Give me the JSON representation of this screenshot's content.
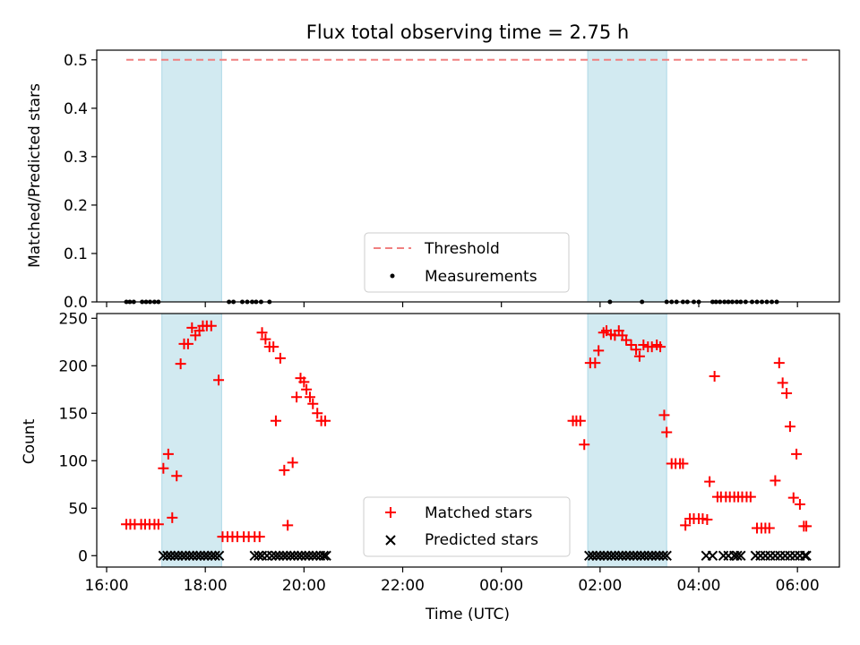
{
  "chart_data": [
    {
      "type": "scatter",
      "title": "Flux total observing time = 2.75 h",
      "ylabel": "Matched/Predicted stars",
      "xlabel": "",
      "x_unit": "hours since 00:00 UTC (values past 24 are next day)",
      "xlim": [
        15.8,
        30.85
      ],
      "ylim": [
        0,
        0.52
      ],
      "yticks": [
        0.0,
        0.1,
        0.2,
        0.3,
        0.4,
        0.5
      ],
      "ytick_labels": [
        "0.0",
        "0.1",
        "0.2",
        "0.3",
        "0.4",
        "0.5"
      ],
      "threshold": {
        "label": "Threshold",
        "y": 0.5,
        "x_start": 16.4,
        "x_end": 30.2,
        "color": "#f08080"
      },
      "shaded_intervals": [
        [
          17.12,
          18.33
        ],
        [
          25.75,
          27.35
        ]
      ],
      "shade_color": "#add8e6",
      "series": [
        {
          "name": "Measurements",
          "marker": "dot",
          "color": "#000000",
          "x": [
            16.4,
            16.47,
            16.55,
            16.72,
            16.8,
            16.88,
            16.97,
            17.05,
            18.48,
            18.57,
            18.75,
            18.85,
            18.95,
            19.03,
            19.13,
            19.3,
            26.2,
            26.85,
            27.35,
            27.45,
            27.55,
            27.68,
            27.77,
            27.9,
            28.0,
            28.28,
            28.35,
            28.43,
            28.52,
            28.6,
            28.68,
            28.77,
            28.85,
            28.95,
            29.08,
            29.18,
            29.28,
            29.38,
            29.48,
            29.58
          ],
          "y": [
            0,
            0,
            0,
            0,
            0,
            0,
            0,
            0,
            0,
            0,
            0,
            0,
            0,
            0,
            0,
            0,
            0,
            0,
            0,
            0,
            0,
            0,
            0,
            0,
            0,
            0,
            0,
            0,
            0,
            0,
            0,
            0,
            0,
            0,
            0,
            0,
            0,
            0,
            0,
            0
          ]
        }
      ],
      "legend": {
        "position": "lower-center",
        "entries": [
          "Threshold",
          "Measurements"
        ]
      }
    },
    {
      "type": "scatter",
      "title": "",
      "xlabel": "Time (UTC)",
      "ylabel": "Count",
      "x_unit": "hours since 00:00 UTC (values past 24 are next day)",
      "xlim": [
        15.8,
        30.85
      ],
      "ylim": [
        -12,
        255
      ],
      "yticks": [
        0,
        50,
        100,
        150,
        200,
        250
      ],
      "ytick_labels": [
        "0",
        "50",
        "100",
        "150",
        "200",
        "250"
      ],
      "xticks": [
        16,
        18,
        20,
        22,
        24,
        26,
        28,
        30
      ],
      "xtick_labels": [
        "16:00",
        "18:00",
        "20:00",
        "22:00",
        "00:00",
        "02:00",
        "04:00",
        "06:00"
      ],
      "shaded_intervals": [
        [
          17.12,
          18.33
        ],
        [
          25.75,
          27.35
        ]
      ],
      "shade_color": "#add8e6",
      "series": [
        {
          "name": "Matched stars",
          "marker": "plus",
          "color": "#ff0000",
          "x": [
            16.4,
            16.48,
            16.57,
            16.7,
            16.78,
            16.87,
            16.97,
            17.05,
            17.15,
            17.25,
            17.33,
            17.42,
            17.5,
            17.57,
            17.65,
            17.73,
            17.8,
            17.88,
            17.95,
            18.03,
            18.12,
            18.27,
            18.35,
            18.45,
            18.55,
            18.65,
            18.78,
            18.88,
            19.0,
            19.1,
            19.15,
            19.22,
            19.3,
            19.38,
            19.43,
            19.52,
            19.6,
            19.67,
            19.77,
            19.85,
            19.93,
            20.0,
            20.05,
            20.12,
            20.18,
            20.27,
            20.35,
            20.43,
            25.45,
            25.52,
            25.6,
            25.68,
            25.8,
            25.9,
            25.97,
            26.07,
            26.13,
            26.22,
            26.3,
            26.38,
            26.45,
            26.53,
            26.63,
            26.73,
            26.8,
            26.88,
            26.97,
            27.05,
            27.15,
            27.22,
            27.3,
            27.35,
            27.45,
            27.53,
            27.62,
            27.68,
            27.73,
            27.82,
            27.9,
            28.0,
            28.08,
            28.17,
            28.22,
            28.32,
            28.38,
            28.45,
            28.55,
            28.63,
            28.72,
            28.8,
            28.88,
            28.97,
            29.05,
            29.18,
            29.27,
            29.35,
            29.43,
            29.55,
            29.63,
            29.7,
            29.78,
            29.85,
            29.92,
            29.98,
            30.05,
            30.13,
            30.18
          ],
          "y": [
            33,
            33,
            33,
            33,
            33,
            33,
            33,
            33,
            92,
            107,
            40,
            84,
            202,
            223,
            223,
            240,
            232,
            237,
            242,
            242,
            242,
            185,
            20,
            20,
            20,
            20,
            20,
            20,
            20,
            20,
            235,
            228,
            220,
            220,
            142,
            208,
            90,
            32,
            98,
            167,
            187,
            183,
            175,
            167,
            160,
            150,
            142,
            142,
            142,
            142,
            142,
            117,
            203,
            203,
            216,
            235,
            237,
            233,
            232,
            237,
            232,
            227,
            222,
            217,
            210,
            222,
            220,
            220,
            222,
            220,
            148,
            130,
            97,
            97,
            97,
            97,
            32,
            39,
            39,
            39,
            39,
            38,
            78,
            189,
            62,
            62,
            62,
            62,
            62,
            62,
            62,
            62,
            62,
            29,
            29,
            29,
            29,
            79,
            203,
            182,
            171,
            136,
            61,
            107,
            54,
            31,
            31
          ]
        },
        {
          "name": "Predicted stars",
          "marker": "x",
          "color": "#000000",
          "x": [
            17.15,
            17.23,
            17.3,
            17.38,
            17.45,
            17.53,
            17.6,
            17.68,
            17.75,
            17.83,
            17.9,
            17.98,
            18.05,
            18.13,
            18.2,
            18.28,
            19.0,
            19.08,
            19.15,
            19.25,
            19.35,
            19.43,
            19.5,
            19.58,
            19.65,
            19.73,
            19.8,
            19.88,
            19.95,
            20.03,
            20.1,
            20.18,
            20.25,
            20.33,
            20.4,
            20.45,
            25.78,
            25.85,
            25.93,
            26.0,
            26.08,
            26.15,
            26.23,
            26.3,
            26.38,
            26.45,
            26.53,
            26.6,
            26.68,
            26.75,
            26.83,
            26.9,
            26.98,
            27.05,
            27.13,
            27.2,
            27.28,
            27.35,
            28.15,
            28.28,
            28.5,
            28.6,
            28.72,
            28.78,
            28.85,
            29.15,
            29.25,
            29.35,
            29.45,
            29.55,
            29.65,
            29.75,
            29.85,
            29.95,
            30.05,
            30.15,
            30.18
          ],
          "y": [
            0,
            0,
            0,
            0,
            0,
            0,
            0,
            0,
            0,
            0,
            0,
            0,
            0,
            0,
            0,
            0,
            0,
            0,
            0,
            0,
            0,
            0,
            0,
            0,
            0,
            0,
            0,
            0,
            0,
            0,
            0,
            0,
            0,
            0,
            0,
            0,
            0,
            0,
            0,
            0,
            0,
            0,
            0,
            0,
            0,
            0,
            0,
            0,
            0,
            0,
            0,
            0,
            0,
            0,
            0,
            0,
            0,
            0,
            0,
            0,
            0,
            0,
            0,
            0,
            0,
            0,
            0,
            0,
            0,
            0,
            0,
            0,
            0,
            0,
            0,
            0,
            0
          ]
        }
      ],
      "legend": {
        "position": "lower-center",
        "entries": [
          "Matched stars",
          "Predicted stars"
        ]
      }
    }
  ]
}
